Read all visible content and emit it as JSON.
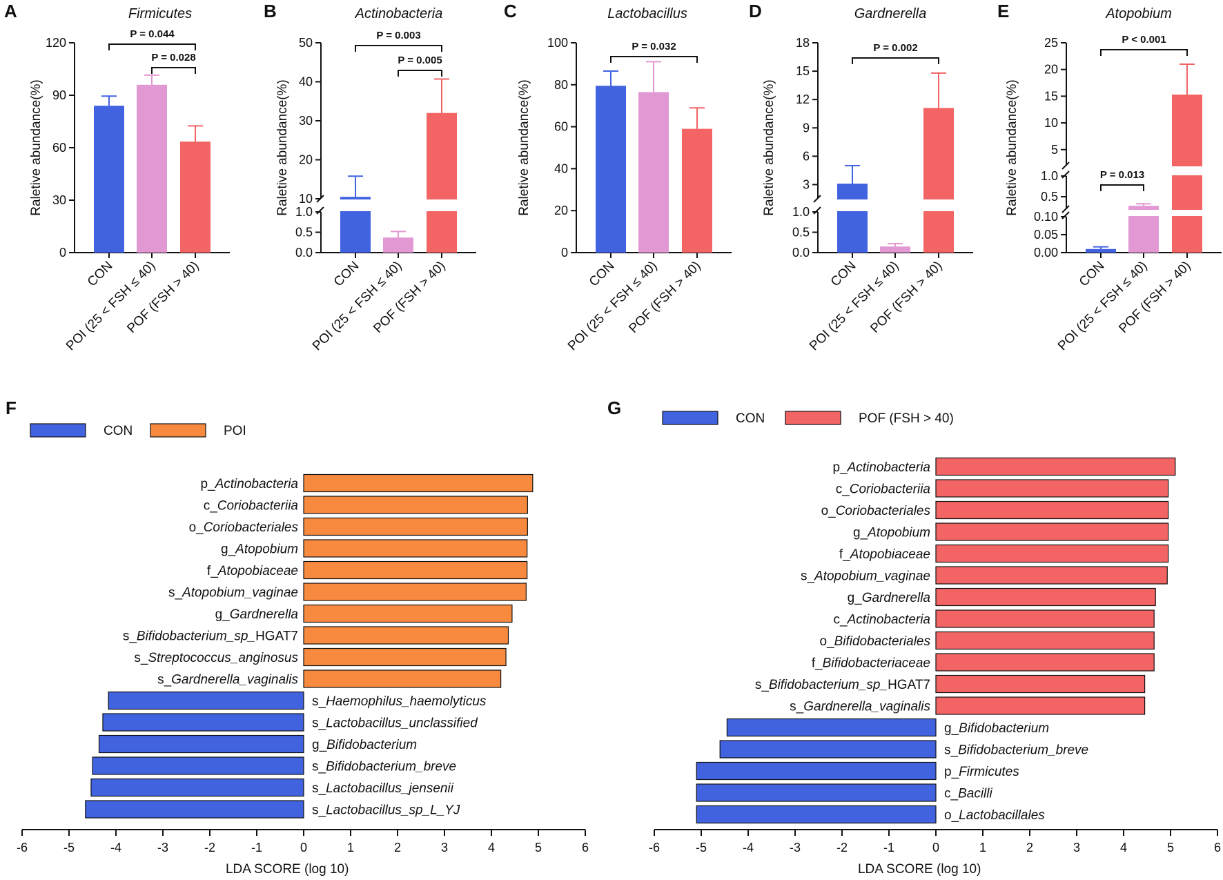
{
  "colors": {
    "con": "#4263E0",
    "poi_light": "#E298D2",
    "pof": "#F36464",
    "poi_orange": "#F78A3F",
    "axis": "#111111"
  },
  "common": {
    "ylabel": "Raletive abundance(%)",
    "lda_xlabel": "LDA SCORE (log 10)"
  },
  "chart_data": [
    {
      "type": "bar",
      "panel": "A",
      "title": "Firmicutes",
      "categories": [
        "CON",
        "POI (25 < FSH ≤ 40)",
        "POF (FSH > 40)"
      ],
      "values": [
        84,
        96,
        63.5
      ],
      "errors": [
        5.5,
        5.5,
        9
      ],
      "ylabel": "Raletive abundance(%)",
      "ylim": [
        0,
        120
      ],
      "yticks": [
        "0",
        "30",
        "60",
        "90",
        "120"
      ],
      "comparisons": [
        {
          "from": 0,
          "to": 2,
          "label": "P = 0.044"
        },
        {
          "from": 1,
          "to": 2,
          "label": "P = 0.028"
        }
      ]
    },
    {
      "type": "bar",
      "panel": "B",
      "title": "Actinobacteria",
      "categories": [
        "CON",
        "POI (25 < FSH ≤ 40)",
        "POF (FSH > 40)"
      ],
      "values": [
        10.5,
        0.37,
        32
      ],
      "errors": [
        5.3,
        0.15,
        8.7
      ],
      "ylabel": "Raletive abundance(%)",
      "segments": [
        [
          0,
          1
        ],
        [
          10,
          50
        ]
      ],
      "yticks": [
        "0.0",
        "0.5",
        "1.0",
        "10",
        "20",
        "30",
        "40",
        "50"
      ],
      "comparisons": [
        {
          "from": 0,
          "to": 2,
          "label": "P = 0.003"
        },
        {
          "from": 1,
          "to": 2,
          "label": "P = 0.005"
        }
      ]
    },
    {
      "type": "bar",
      "panel": "C",
      "title": "Lactobacillus",
      "categories": [
        "CON",
        "POI (25 < FSH ≤ 40)",
        "POF (FSH > 40)"
      ],
      "values": [
        79.5,
        76.5,
        59
      ],
      "errors": [
        7,
        14.5,
        10
      ],
      "ylabel": "Raletive abundance(%)",
      "ylim": [
        0,
        100
      ],
      "yticks": [
        "0",
        "20",
        "40",
        "60",
        "80",
        "100"
      ],
      "comparisons": [
        {
          "from": 0,
          "to": 2,
          "label": "P = 0.032"
        }
      ]
    },
    {
      "type": "bar",
      "panel": "D",
      "title": "Gardnerella",
      "categories": [
        "CON",
        "POI (25 < FSH ≤ 40)",
        "POF (FSH > 40)"
      ],
      "values": [
        3.1,
        0.15,
        11.1
      ],
      "errors": [
        1.9,
        0.07,
        3.7
      ],
      "ylabel": "Raletive abundance(%)",
      "segments": [
        [
          0,
          1
        ],
        [
          1.5,
          18
        ]
      ],
      "yticks": [
        "0.0",
        "0.5",
        "1.0",
        "3",
        "6",
        "9",
        "12",
        "15",
        "18"
      ],
      "comparisons": [
        {
          "from": 0,
          "to": 2,
          "label": "P = 0.002"
        }
      ]
    },
    {
      "type": "bar",
      "panel": "E",
      "title": "Atopobium",
      "categories": [
        "CON",
        "POI (25 < FSH ≤ 40)",
        "POF (FSH > 40)"
      ],
      "values": [
        0.01,
        0.28,
        15.3
      ],
      "errors": [
        0.006,
        0.05,
        5.7
      ],
      "ylabel": "Raletive abundance(%)",
      "segments": [
        [
          0,
          0.1
        ],
        [
          0.2,
          1
        ],
        [
          2,
          25
        ]
      ],
      "yticks": [
        "0.00",
        "0.05",
        "0.10",
        "0.5",
        "1.0",
        "5",
        "10",
        "15",
        "20",
        "25"
      ],
      "comparisons": [
        {
          "from": 0,
          "to": 2,
          "label": "P < 0.001"
        },
        {
          "from": 0,
          "to": 1,
          "label": "P = 0.013"
        }
      ]
    },
    {
      "type": "lda",
      "panel": "F",
      "xlabel": "LDA SCORE (log 10)",
      "xlim": [
        -6,
        6
      ],
      "xticks": [
        "-6",
        "-5",
        "-4",
        "-3",
        "-2",
        "-1",
        "0",
        "1",
        "2",
        "3",
        "4",
        "5",
        "6"
      ],
      "legend": [
        {
          "label": "CON",
          "group": "con"
        },
        {
          "label": "POI",
          "group": "poi"
        }
      ],
      "bars": [
        {
          "prefix": "p_",
          "name": "Actinobacteria",
          "suffix": "",
          "value": 4.88,
          "group": "poi"
        },
        {
          "prefix": "c_",
          "name": "Coriobacteriia",
          "suffix": "",
          "value": 4.77,
          "group": "poi"
        },
        {
          "prefix": "o_",
          "name": "Coriobacteriales",
          "suffix": "",
          "value": 4.77,
          "group": "poi"
        },
        {
          "prefix": "g_",
          "name": "Atopobium",
          "suffix": "",
          "value": 4.76,
          "group": "poi"
        },
        {
          "prefix": "f_",
          "name": "Atopobiaceae",
          "suffix": "",
          "value": 4.76,
          "group": "poi"
        },
        {
          "prefix": "s_",
          "name": "Atopobium_vaginae",
          "suffix": "",
          "value": 4.74,
          "group": "poi"
        },
        {
          "prefix": "g_",
          "name": "Gardnerella",
          "suffix": "",
          "value": 4.44,
          "group": "poi"
        },
        {
          "prefix": "s_",
          "name": "Bifidobacterium_sp_",
          "suffix": "HGAT7",
          "value": 4.36,
          "group": "poi"
        },
        {
          "prefix": "s_",
          "name": "Streptococcus_anginosus",
          "suffix": "",
          "value": 4.31,
          "group": "poi"
        },
        {
          "prefix": "s_",
          "name": "Gardnerella_vaginalis",
          "suffix": "",
          "value": 4.2,
          "group": "poi"
        },
        {
          "prefix": "s_",
          "name": "Haemophilus_haemolyticus",
          "suffix": "",
          "value": -4.16,
          "group": "con"
        },
        {
          "prefix": "s_",
          "name": "Lactobacillus_unclassified",
          "suffix": "",
          "value": -4.28,
          "group": "con"
        },
        {
          "prefix": "g_",
          "name": "Bifidobacterium",
          "suffix": "",
          "value": -4.36,
          "group": "con"
        },
        {
          "prefix": "s_",
          "name": "Bifidobacterium_breve",
          "suffix": "",
          "value": -4.5,
          "group": "con"
        },
        {
          "prefix": "s_",
          "name": "Lactobacillus_jensenii",
          "suffix": "",
          "value": -4.53,
          "group": "con"
        },
        {
          "prefix": "s_",
          "name": "Lactobacillus_sp_L_YJ",
          "suffix": "",
          "value": -4.65,
          "group": "con"
        }
      ]
    },
    {
      "type": "lda",
      "panel": "G",
      "xlabel": "LDA SCORE (log 10)",
      "xlim": [
        -6,
        6
      ],
      "xticks": [
        "-6",
        "-5",
        "-4",
        "-3",
        "-2",
        "-1",
        "0",
        "1",
        "2",
        "3",
        "4",
        "5",
        "6"
      ],
      "legend": [
        {
          "label": "CON",
          "group": "con"
        },
        {
          "label": "POF (FSH > 40)",
          "group": "pof"
        }
      ],
      "bars": [
        {
          "prefix": "p_",
          "name": "Actinobacteria",
          "suffix": "",
          "value": 5.1,
          "group": "pof"
        },
        {
          "prefix": "c_",
          "name": "Coriobacteriia",
          "suffix": "",
          "value": 4.95,
          "group": "pof"
        },
        {
          "prefix": "o_",
          "name": "Coriobacteriales",
          "suffix": "",
          "value": 4.95,
          "group": "pof"
        },
        {
          "prefix": "g_",
          "name": "Atopobium",
          "suffix": "",
          "value": 4.95,
          "group": "pof"
        },
        {
          "prefix": "f_",
          "name": "Atopobiaceae",
          "suffix": "",
          "value": 4.95,
          "group": "pof"
        },
        {
          "prefix": "s_",
          "name": "Atopobium_vaginae",
          "suffix": "",
          "value": 4.93,
          "group": "pof"
        },
        {
          "prefix": "g_",
          "name": "Gardnerella",
          "suffix": "",
          "value": 4.68,
          "group": "pof"
        },
        {
          "prefix": "c_",
          "name": "Actinobacteria",
          "suffix": "",
          "value": 4.65,
          "group": "pof"
        },
        {
          "prefix": "o_",
          "name": "Bifidobacteriales",
          "suffix": "",
          "value": 4.65,
          "group": "pof"
        },
        {
          "prefix": "f_",
          "name": "Bifidobacteriaceae",
          "suffix": "",
          "value": 4.65,
          "group": "pof"
        },
        {
          "prefix": "s_",
          "name": "Bifidobacterium_sp_",
          "suffix": "HGAT7",
          "value": 4.45,
          "group": "pof"
        },
        {
          "prefix": "s_",
          "name": "Gardnerella_vaginalis",
          "suffix": "",
          "value": 4.45,
          "group": "pof"
        },
        {
          "prefix": "g_",
          "name": "Bifidobacterium",
          "suffix": "",
          "value": -4.45,
          "group": "con"
        },
        {
          "prefix": "s_",
          "name": "Bifidobacterium_breve",
          "suffix": "",
          "value": -4.6,
          "group": "con"
        },
        {
          "prefix": "p_",
          "name": "Firmicutes",
          "suffix": "",
          "value": -5.1,
          "group": "con"
        },
        {
          "prefix": "c_",
          "name": "Bacilli",
          "suffix": "",
          "value": -5.1,
          "group": "con"
        },
        {
          "prefix": "o_",
          "name": "Lactobacillales",
          "suffix": "",
          "value": -5.1,
          "group": "con"
        }
      ]
    }
  ]
}
